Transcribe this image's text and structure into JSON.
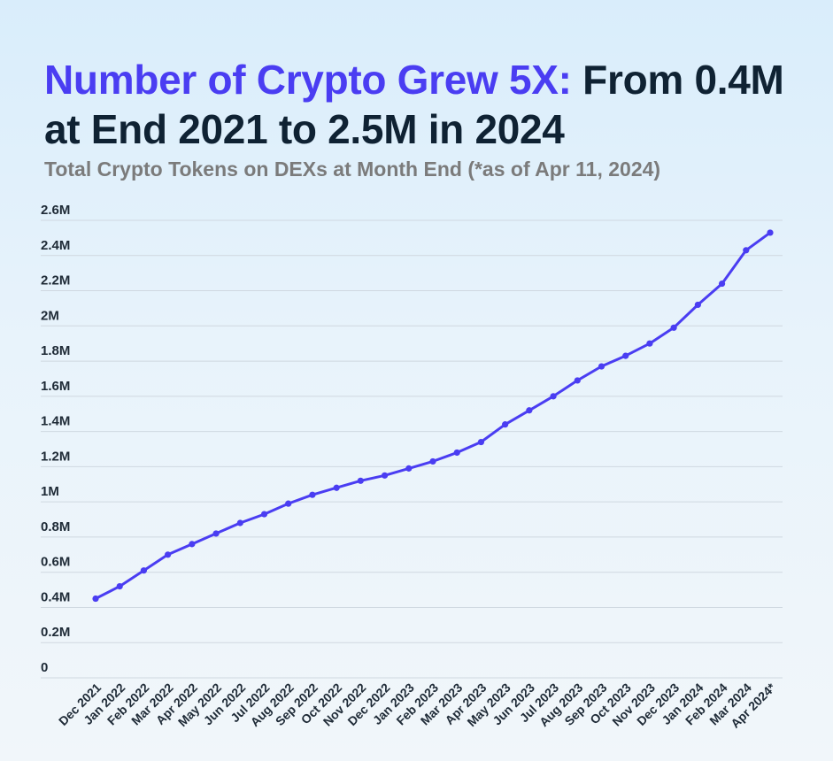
{
  "header": {
    "title_accent": "Number of Crypto Grew 5X:",
    "title_rest": " From 0.4M at End 2021 to 2.5M in 2024",
    "subtitle": "Total Crypto Tokens on DEXs at Month End (*as of Apr 11, 2024)"
  },
  "colors": {
    "accent": "#4a3df2",
    "line": "#4a3df2",
    "title_text": "#0f2233",
    "subtitle_text": "#7b7b7b"
  },
  "chart_data": {
    "type": "line",
    "title": "Number of Crypto Grew 5X: From 0.4M at End 2021 to 2.5M in 2024",
    "subtitle": "Total Crypto Tokens on DEXs at Month End (*as of Apr 11, 2024)",
    "xlabel": "",
    "ylabel": "",
    "ylim": [
      0,
      2600000
    ],
    "yticks": [
      0,
      200000,
      400000,
      600000,
      800000,
      1000000,
      1200000,
      1400000,
      1600000,
      1800000,
      2000000,
      2200000,
      2400000,
      2600000
    ],
    "ytick_labels": [
      "0",
      "0.2M",
      "0.4M",
      "0.6M",
      "0.8M",
      "1M",
      "1.2M",
      "1.4M",
      "1.6M",
      "1.8M",
      "2M",
      "2.2M",
      "2.4M",
      "2.6M"
    ],
    "grid": true,
    "legend": "none",
    "categories": [
      "Dec 2021",
      "Jan 2022",
      "Feb 2022",
      "Mar 2022",
      "Apr 2022",
      "May 2022",
      "Jun 2022",
      "Jul 2022",
      "Aug 2022",
      "Sep 2022",
      "Oct 2022",
      "Nov 2022",
      "Dec 2022",
      "Jan 2023",
      "Feb 2023",
      "Mar 2023",
      "Apr 2023",
      "May 2023",
      "Jun 2023",
      "Jul 2023",
      "Aug 2023",
      "Sep 2023",
      "Oct 2023",
      "Nov 2023",
      "Dec 2023",
      "Jan 2024",
      "Feb 2024",
      "Mar 2024",
      "Apr 2024*"
    ],
    "series": [
      {
        "values": [
          450000,
          520000,
          610000,
          700000,
          760000,
          820000,
          880000,
          930000,
          990000,
          1040000,
          1080000,
          1120000,
          1150000,
          1190000,
          1230000,
          1280000,
          1340000,
          1440000,
          1520000,
          1600000,
          1690000,
          1770000,
          1830000,
          1900000,
          1990000,
          2120000,
          2240000,
          2430000,
          2530000
        ]
      }
    ]
  }
}
